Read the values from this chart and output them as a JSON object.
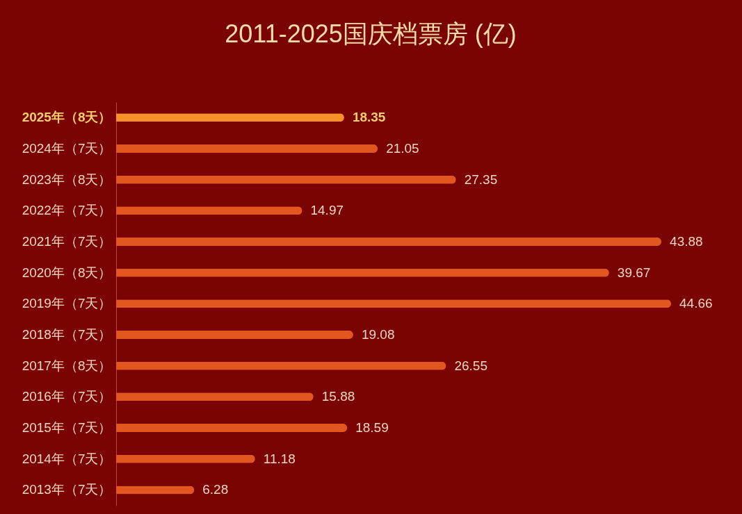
{
  "chart_data": {
    "type": "bar",
    "orientation": "horizontal",
    "title": "2011-2025国庆档票房 (亿)",
    "categories": [
      "2025年（8天）",
      "2024年（7天）",
      "2023年（8天）",
      "2022年（7天）",
      "2021年（7天）",
      "2020年（8天）",
      "2019年（7天）",
      "2018年（7天）",
      "2017年（8天）",
      "2016年（7天）",
      "2015年（7天）",
      "2014年（7天）",
      "2013年（7天）"
    ],
    "values": [
      18.35,
      21.05,
      27.35,
      14.97,
      43.88,
      39.67,
      44.66,
      19.08,
      26.55,
      15.88,
      18.59,
      11.18,
      6.28
    ],
    "colors": [
      "#f7922a",
      "#e2561f",
      "#e2561f",
      "#e2561f",
      "#e2561f",
      "#e2561f",
      "#e2561f",
      "#e2561f",
      "#e2561f",
      "#e2561f",
      "#e2561f",
      "#e2561f",
      "#e2561f"
    ],
    "data_labels": true
  }
}
